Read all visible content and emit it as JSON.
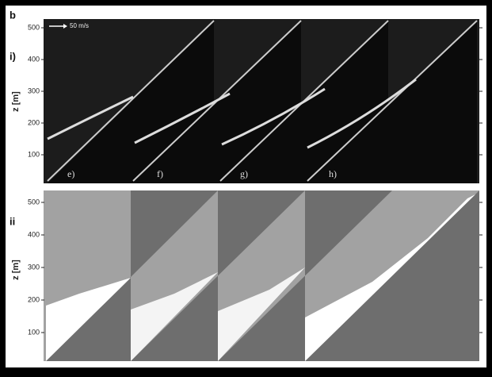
{
  "figure_label": "b",
  "panels": [
    {
      "label": "i)",
      "y_axis_label": "z [m]",
      "y_ticks": [
        "500",
        "400",
        "300",
        "200",
        "100"
      ],
      "scale_label": "50 m/s",
      "frame_labels": [
        "e)",
        "f)",
        "g)",
        "h)"
      ]
    },
    {
      "label": "ii",
      "y_axis_label": "z [m]",
      "y_ticks": [
        "500",
        "400",
        "300",
        "200",
        "100"
      ]
    }
  ]
}
